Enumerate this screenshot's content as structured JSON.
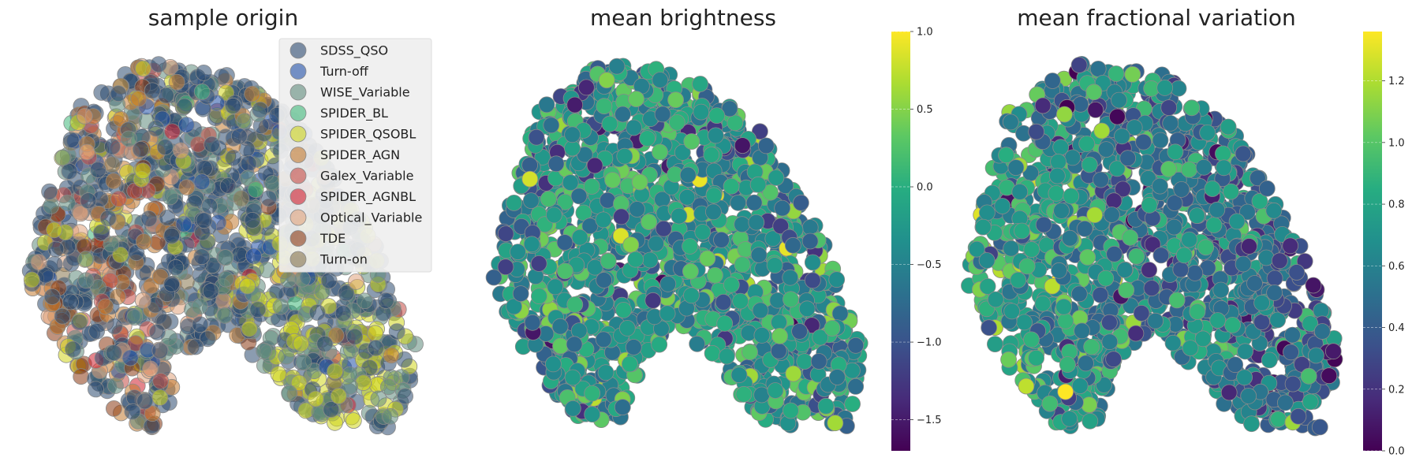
{
  "chart_data": [
    {
      "type": "scatter",
      "title": "sample origin",
      "xlabel": "",
      "ylabel": "",
      "axes_visible": false,
      "grid": false,
      "legend": {
        "placement": "top-right",
        "entries": [
          {
            "name": "SDSS_QSO",
            "color": "#2b4a70",
            "point_share": 0.55
          },
          {
            "name": "Turn-off",
            "color": "#1f4fa6",
            "point_share": 0.05
          },
          {
            "name": "WISE_Variable",
            "color": "#5f8a7c",
            "point_share": 0.16
          },
          {
            "name": "SPIDER_BL",
            "color": "#3fb87a",
            "point_share": 0.01
          },
          {
            "name": "SPIDER_QSOBL",
            "color": "#cfd61c",
            "point_share": 0.09
          },
          {
            "name": "SPIDER_AGN",
            "color": "#c27a30",
            "point_share": 0.06
          },
          {
            "name": "Galex_Variable",
            "color": "#c44a43",
            "point_share": 0.02
          },
          {
            "name": "SPIDER_AGNBL",
            "color": "#d01f2e",
            "point_share": 0.01
          },
          {
            "name": "Optical_Variable",
            "color": "#e0a27c",
            "point_share": 0.03
          },
          {
            "name": "TDE",
            "color": "#8a3812",
            "point_share": 0.01
          },
          {
            "name": "Turn-on",
            "color": "#87744d",
            "point_share": 0.01
          }
        ]
      },
      "n_points": 1500
    },
    {
      "type": "scatter",
      "title": "mean brightness",
      "xlabel": "",
      "ylabel": "",
      "axes_visible": false,
      "grid": false,
      "colormap": "viridis",
      "colorbar": {
        "placement": "right",
        "range": [
          -1.7,
          1.0
        ],
        "ticks": [
          -1.5,
          -1.0,
          -0.5,
          0.0,
          0.5,
          1.0
        ],
        "tick_labels": [
          "−1.5",
          "−1.0",
          "−0.5",
          "0.0",
          "0.5",
          "1.0"
        ]
      },
      "value_distribution": {
        "typical": -0.35,
        "spread": 0.45
      },
      "n_points": 1500
    },
    {
      "type": "scatter",
      "title": "mean fractional variation",
      "xlabel": "",
      "ylabel": "",
      "axes_visible": false,
      "grid": false,
      "colormap": "viridis",
      "colorbar": {
        "placement": "right",
        "range": [
          0.0,
          1.36
        ],
        "ticks": [
          0.0,
          0.2,
          0.4,
          0.6,
          0.8,
          1.0,
          1.2
        ],
        "tick_labels": [
          "0.0",
          "0.2",
          "0.4",
          "0.6",
          "0.8",
          "1.0",
          "1.2"
        ]
      },
      "value_distribution": {
        "typical": 0.6,
        "spread": 0.22
      },
      "n_points": 1500
    }
  ],
  "colors": {
    "viridis": [
      "#440154",
      "#472c7a",
      "#3b518b",
      "#2c718e",
      "#21908d",
      "#27ad81",
      "#5cc863",
      "#aadc32",
      "#fde725"
    ],
    "marker_edge": "#8a8a8a",
    "legend_bg": "#efefef"
  }
}
